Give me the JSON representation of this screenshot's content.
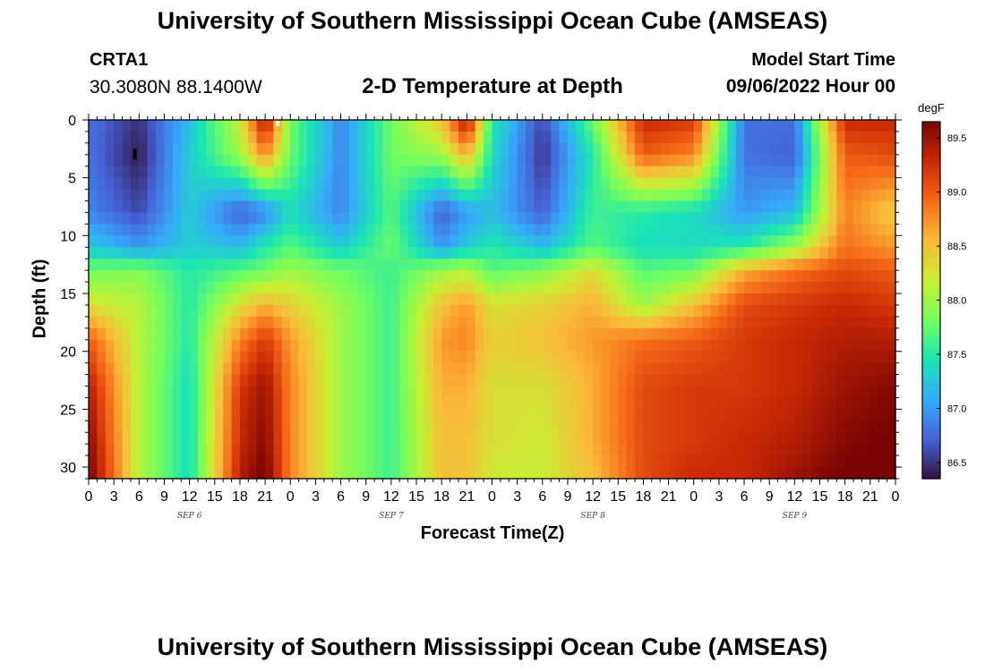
{
  "header": {
    "title": "University of Southern Mississippi Ocean Cube (AMSEAS)",
    "station": "CRTA1",
    "coords": "30.3080N  88.1400W",
    "subtitle": "2-D Temperature at Depth",
    "model_start_label": "Model Start Time",
    "model_start_value": "09/06/2022 Hour 00"
  },
  "footer": {
    "title": "University of Southern Mississippi Ocean Cube (AMSEAS)"
  },
  "colors": {
    "colormap": [
      "#30123b",
      "#4662d7",
      "#36aaf9",
      "#1ae4b6",
      "#72fe5e",
      "#c8ef34",
      "#faba39",
      "#f66b19",
      "#cb2a04",
      "#7a0403"
    ]
  },
  "chart_data": {
    "type": "heatmap",
    "xlabel": "Forecast Time(Z)",
    "ylabel": "Depth (ft)",
    "x_tick_labels": [
      "0",
      "3",
      "6",
      "9",
      "12",
      "15",
      "18",
      "21",
      "0",
      "3",
      "6",
      "9",
      "12",
      "15",
      "18",
      "21",
      "0",
      "3",
      "6",
      "9",
      "12",
      "15",
      "18",
      "21",
      "0",
      "3",
      "6",
      "9",
      "12",
      "15",
      "18",
      "21",
      "0"
    ],
    "date_labels": [
      "SEP 6",
      "SEP 7",
      "SEP 8",
      "SEP 9"
    ],
    "xlim_hours": [
      0,
      96
    ],
    "y_ticks": [
      0,
      5,
      10,
      15,
      20,
      25,
      30
    ],
    "ylim_ft": [
      0,
      31
    ],
    "y_inverted": true,
    "colorbar": {
      "unit": "degF",
      "ticks": [
        "86.5",
        "87.0",
        "87.5",
        "88.0",
        "88.5",
        "89.0",
        "89.5"
      ],
      "range": [
        86.35,
        89.65
      ]
    },
    "field_model": {
      "depth_levels_ft": [
        0,
        3,
        8,
        11,
        13,
        16,
        19,
        23,
        28,
        31
      ],
      "time_hours": [
        0,
        6,
        12,
        18,
        21,
        24,
        30,
        36,
        42,
        45,
        48,
        54,
        60,
        66,
        72,
        78,
        84,
        90,
        96
      ],
      "temperature_degF_rows": [
        [
          86.8,
          86.5,
          87.2,
          88.2,
          89.5,
          87.8,
          86.9,
          87.8,
          88.5,
          89.5,
          87.5,
          86.6,
          87.8,
          89.3,
          89.2,
          86.8,
          86.8,
          89.3,
          89.3
        ],
        [
          86.8,
          86.4,
          87.3,
          88.0,
          88.8,
          87.8,
          86.9,
          87.8,
          88.0,
          88.6,
          87.4,
          86.5,
          87.5,
          89.0,
          88.8,
          86.8,
          86.7,
          89.0,
          89.1
        ],
        [
          86.9,
          86.6,
          87.3,
          86.7,
          86.9,
          87.4,
          86.9,
          87.7,
          86.7,
          87.0,
          87.2,
          86.7,
          87.6,
          87.5,
          87.4,
          87.0,
          87.2,
          88.8,
          88.4
        ],
        [
          87.3,
          87.0,
          87.3,
          87.2,
          87.5,
          87.7,
          87.3,
          87.8,
          87.0,
          87.3,
          87.5,
          87.2,
          87.7,
          87.4,
          87.4,
          87.5,
          88.0,
          88.9,
          88.7
        ],
        [
          87.8,
          87.9,
          87.5,
          87.7,
          87.8,
          88.0,
          87.8,
          87.6,
          88.0,
          88.1,
          87.7,
          87.9,
          88.3,
          87.7,
          87.8,
          88.6,
          88.9,
          89.1,
          89.0
        ],
        [
          88.3,
          88.1,
          87.5,
          88.3,
          88.6,
          88.4,
          88.0,
          87.6,
          88.5,
          88.7,
          88.3,
          88.4,
          88.6,
          88.0,
          88.5,
          89.1,
          89.2,
          89.3,
          89.2
        ],
        [
          89.0,
          88.1,
          87.5,
          88.8,
          89.2,
          88.7,
          88.0,
          87.6,
          88.7,
          88.8,
          88.4,
          88.5,
          88.7,
          88.9,
          89.0,
          89.2,
          89.3,
          89.4,
          89.4
        ],
        [
          89.4,
          88.1,
          87.4,
          89.2,
          89.5,
          88.8,
          88.0,
          87.6,
          88.6,
          88.6,
          88.3,
          88.3,
          88.6,
          89.1,
          89.2,
          89.2,
          89.3,
          89.5,
          89.6
        ],
        [
          89.6,
          88.1,
          87.4,
          89.3,
          89.6,
          88.8,
          88.0,
          87.6,
          88.5,
          88.5,
          88.3,
          88.2,
          88.6,
          89.1,
          89.2,
          89.3,
          89.4,
          89.6,
          89.7
        ],
        [
          89.7,
          88.1,
          87.4,
          89.4,
          89.7,
          88.8,
          88.0,
          87.6,
          88.5,
          88.5,
          88.2,
          88.2,
          88.5,
          89.1,
          89.3,
          89.3,
          89.5,
          89.7,
          89.8
        ]
      ]
    }
  }
}
